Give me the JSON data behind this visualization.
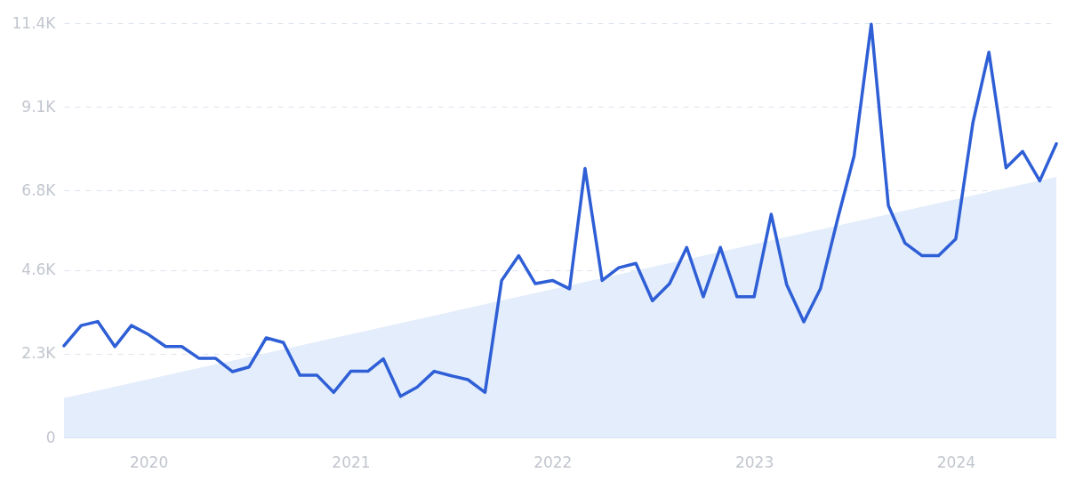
{
  "chart_data": {
    "type": "line",
    "x": [
      "2019-08",
      "2019-09",
      "2019-10",
      "2019-11",
      "2019-12",
      "2020-01",
      "2020-02",
      "2020-03",
      "2020-04",
      "2020-05",
      "2020-06",
      "2020-07",
      "2020-08",
      "2020-09",
      "2020-10",
      "2020-11",
      "2020-12",
      "2021-01",
      "2021-02",
      "2021-03",
      "2021-04",
      "2021-05",
      "2021-06",
      "2021-07",
      "2021-08",
      "2021-09",
      "2021-10",
      "2021-11",
      "2021-12",
      "2022-01",
      "2022-02",
      "2022-03",
      "2022-04",
      "2022-05",
      "2022-06",
      "2022-07",
      "2022-08",
      "2022-09",
      "2022-10",
      "2022-11",
      "2022-12",
      "2023-01",
      "2023-02",
      "2023-03",
      "2023-04",
      "2023-05",
      "2023-06",
      "2023-07",
      "2023-08",
      "2023-09",
      "2023-10",
      "2023-11",
      "2023-12",
      "2024-01",
      "2024-02",
      "2024-03",
      "2024-04",
      "2024-05",
      "2024-06",
      "2024-07"
    ],
    "series": [
      {
        "type": "area",
        "color": "#e3edfb",
        "x": [
          "2019-08",
          "2024-07"
        ],
        "values": [
          1080,
          7170
        ]
      },
      {
        "color": "#2f5fd6",
        "values": [
          2520,
          3080,
          3190,
          2500,
          3080,
          2830,
          2500,
          2500,
          2180,
          2180,
          1810,
          1940,
          2740,
          2610,
          1710,
          1710,
          1240,
          1820,
          1820,
          2160,
          1130,
          1380,
          1820,
          1700,
          1590,
          1240,
          4320,
          5000,
          4230,
          4320,
          4090,
          7400,
          4320,
          4670,
          4790,
          3760,
          4230,
          5230,
          3870,
          5230,
          3870,
          3870,
          6140,
          4200,
          3180,
          4090,
          6000,
          7750,
          11370,
          6380,
          5350,
          5000,
          5000,
          5460,
          8660,
          10600,
          7420,
          7870,
          7060,
          8080
        ]
      }
    ],
    "xlim": [
      "2019-08",
      "2024-07"
    ],
    "xticks": [
      {
        "value": "2020-01",
        "label": "2020"
      },
      {
        "value": "2021-01",
        "label": "2021"
      },
      {
        "value": "2022-01",
        "label": "2022"
      },
      {
        "value": "2023-01",
        "label": "2023"
      },
      {
        "value": "2024-01",
        "label": "2024"
      }
    ],
    "ylim": [
      0,
      11400
    ],
    "yticks": [
      0,
      {
        "value": 2300,
        "label": "2.3K"
      },
      {
        "value": 4600,
        "label": "4.6K"
      },
      {
        "value": 6800,
        "label": "6.8K"
      },
      {
        "value": 9100,
        "label": "9.1K"
      },
      {
        "value": 11400,
        "label": "11.4K"
      }
    ],
    "grid": "y",
    "marker": "none",
    "line_style": "solid"
  }
}
